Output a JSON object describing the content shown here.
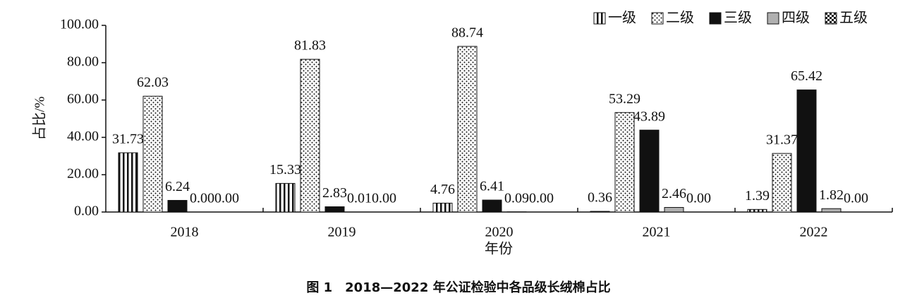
{
  "chart_data": {
    "type": "bar",
    "caption": "图 1　2018—2022 年公证检验中各品级长绒棉占比",
    "x_label": "年份",
    "y_label": "占比/%",
    "categories": [
      "2018",
      "2019",
      "2020",
      "2021",
      "2022"
    ],
    "series": [
      {
        "name": "一级",
        "color": "#111111",
        "pattern": "vertical-stripes",
        "values": [
          31.73,
          15.33,
          4.76,
          0.36,
          1.39
        ],
        "value_labels": [
          "31.73",
          "15.33",
          "4.76",
          "0.36",
          "1.39"
        ]
      },
      {
        "name": "二级",
        "color": "#111111",
        "pattern": "dots",
        "values": [
          62.03,
          81.83,
          88.74,
          53.29,
          31.37
        ],
        "value_labels": [
          "62.03",
          "81.83",
          "88.74",
          "53.29",
          "31.37"
        ]
      },
      {
        "name": "三级",
        "color": "#111111",
        "pattern": "solid",
        "values": [
          6.24,
          2.83,
          6.41,
          43.89,
          65.42
        ],
        "value_labels": [
          "6.24",
          "2.83",
          "6.41",
          "43.89",
          "65.42"
        ]
      },
      {
        "name": "四级",
        "color": "#b0b0b0",
        "pattern": "solid",
        "values": [
          0.0,
          0.01,
          0.09,
          2.46,
          1.82
        ],
        "value_labels": [
          "0.00",
          "0.01",
          "0.09",
          "2.46",
          "1.82"
        ]
      },
      {
        "name": "五级",
        "color": "#111111",
        "pattern": "checker",
        "values": [
          0.0,
          0.0,
          0.0,
          0.0,
          0.0
        ],
        "value_labels": [
          "0.00",
          "0.00",
          "0.00",
          "0.00",
          "0.00"
        ]
      }
    ],
    "ylim": [
      0,
      100
    ],
    "yticks": [
      {
        "value": 0,
        "label": "0.00"
      },
      {
        "value": 20,
        "label": "20.00"
      },
      {
        "value": 40,
        "label": "40.00"
      },
      {
        "value": 60,
        "label": "60.00"
      },
      {
        "value": 80,
        "label": "80.00"
      },
      {
        "value": 100,
        "label": "100.00"
      }
    ],
    "legend": "top-right"
  }
}
